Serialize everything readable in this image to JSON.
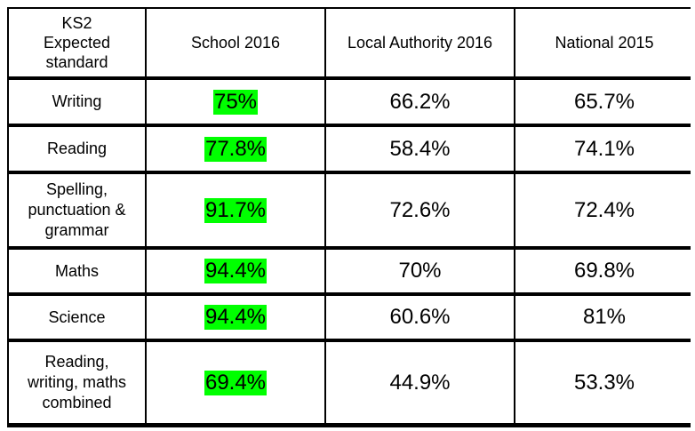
{
  "table": {
    "headers": [
      "KS2\nExpected\nstandard",
      "School 2016",
      "Local Authority 2016",
      "National 2015"
    ],
    "rows": [
      {
        "label": "Writing",
        "school": "75%",
        "la": "66.2%",
        "national": "65.7%"
      },
      {
        "label": "Reading",
        "school": "77.8%",
        "la": "58.4%",
        "national": "74.1%"
      },
      {
        "label": "Spelling,\npunctuation &\ngrammar",
        "school": "91.7%",
        "la": "72.6%",
        "national": "72.4%"
      },
      {
        "label": "Maths",
        "school": "94.4%",
        "la": "70%",
        "national": "69.8%"
      },
      {
        "label": "Science",
        "school": "94.4%",
        "la": "60.6%",
        "national": "81%"
      },
      {
        "label": "Reading,\nwriting, maths\ncombined",
        "school": "69.4%",
        "la": "44.9%",
        "national": "53.3%"
      }
    ],
    "highlight_color": "#00ff00"
  }
}
